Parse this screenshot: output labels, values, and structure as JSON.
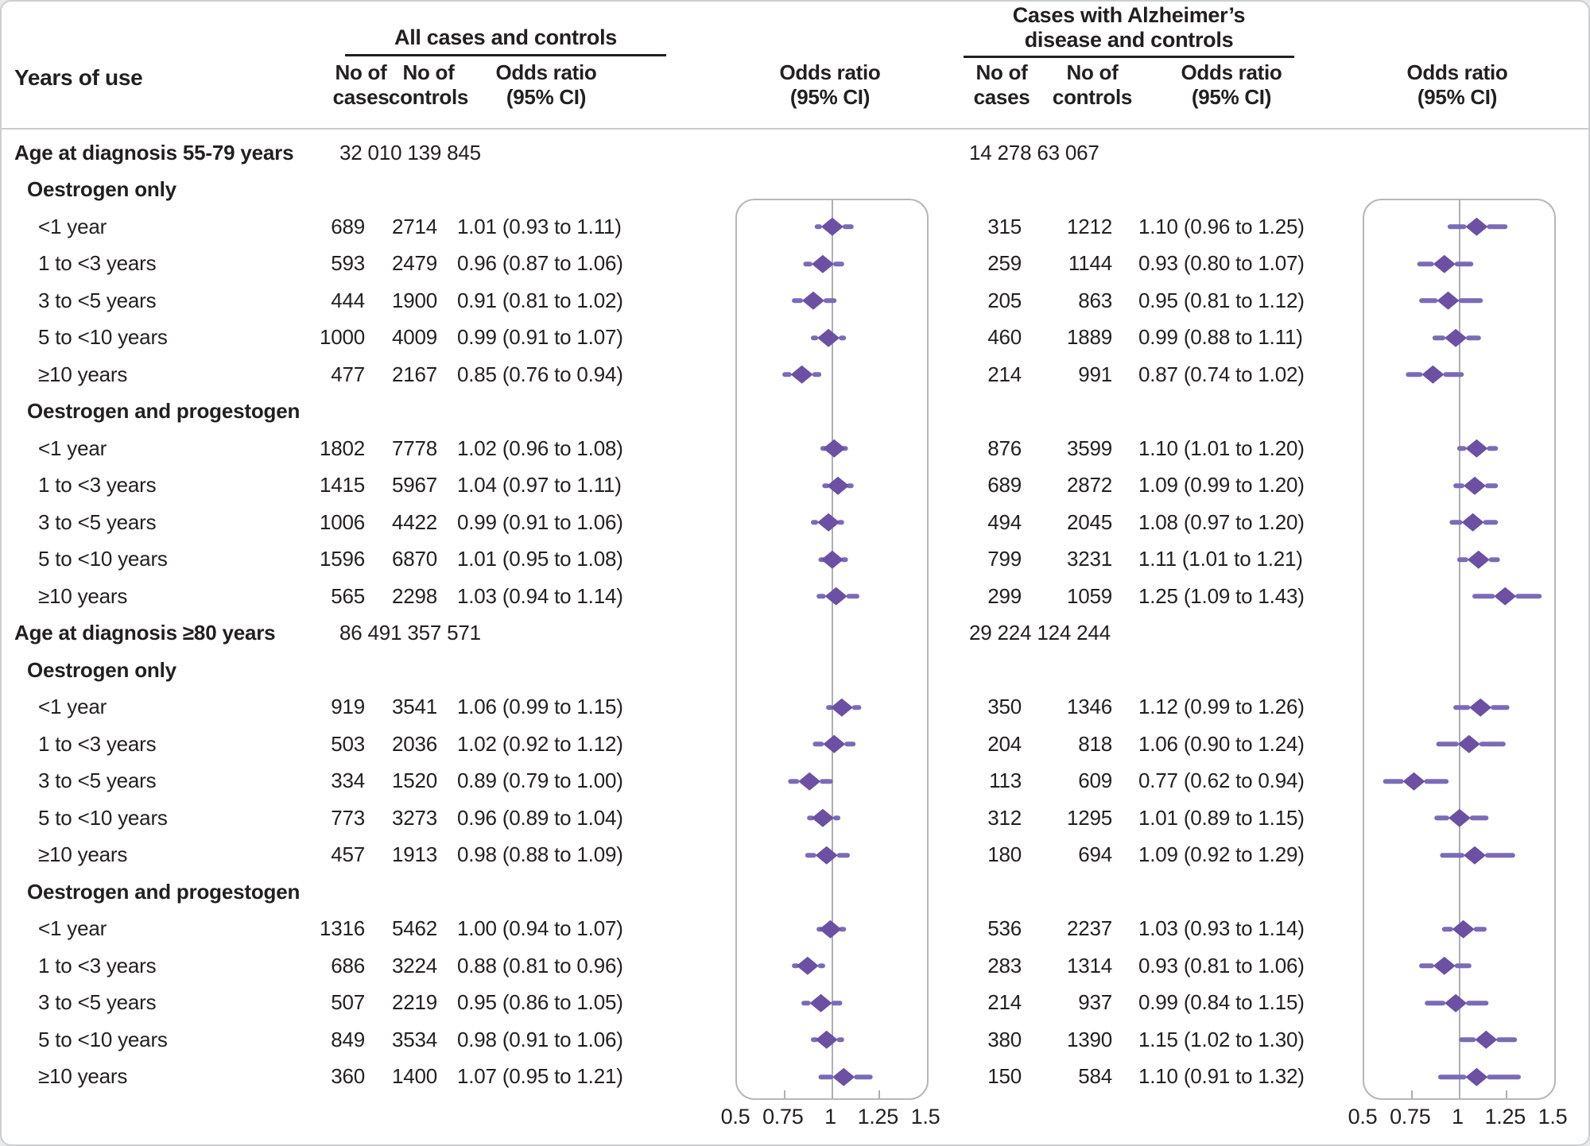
{
  "header": {
    "years_of_use": "Years of use",
    "group1_title": "All cases and controls",
    "group2_title_line1": "Cases with Alzheimer’s",
    "group2_title_line2": "disease and controls",
    "no_of": "No of",
    "cases": "cases",
    "controls": "controls",
    "odds_ratio_l1": "Odds ratio",
    "odds_ratio_l2": "(95% CI)"
  },
  "colors": {
    "diamond": "#6b50a3",
    "ci_line": "#7b6bb7",
    "ref_line": "#adafb2",
    "panel_border": "#b5b7ba",
    "rule": "#c9cbce",
    "text": "#231f20"
  },
  "chart_data": {
    "type": "forest",
    "or_axis": {
      "min": 0.5,
      "max": 1.5,
      "reference": 1,
      "tick_values": [
        0.5,
        0.75,
        1,
        1.25,
        1.5
      ],
      "tick_labels": [
        "0.5",
        "0.75",
        "1",
        "1.25",
        "1.5"
      ],
      "minor_tick_values": [
        0.75,
        1.25
      ]
    },
    "rows": [
      {
        "kind": "section",
        "label": "Age at diagnosis 55-79 years",
        "left_counts": "32 010 139 845",
        "right_counts": "14 278  63 067"
      },
      {
        "kind": "subgroup",
        "label": "Oestrogen only"
      },
      {
        "kind": "item",
        "label": "<1 year",
        "left": {
          "cases": "689",
          "controls": "2714",
          "or_text": "1.01 (0.93 to 1.11)",
          "or": 1.01,
          "lo": 0.93,
          "hi": 1.11
        },
        "right": {
          "cases": "315",
          "controls": "1212",
          "or_text": "1.10 (0.96 to 1.25)",
          "or": 1.1,
          "lo": 0.96,
          "hi": 1.25
        }
      },
      {
        "kind": "item",
        "label": "1 to <3 years",
        "left": {
          "cases": "593",
          "controls": "2479",
          "or_text": "0.96 (0.87 to 1.06)",
          "or": 0.96,
          "lo": 0.87,
          "hi": 1.06
        },
        "right": {
          "cases": "259",
          "controls": "1144",
          "or_text": "0.93 (0.80 to 1.07)",
          "or": 0.93,
          "lo": 0.8,
          "hi": 1.07
        }
      },
      {
        "kind": "item",
        "label": "3 to <5 years",
        "left": {
          "cases": "444",
          "controls": "1900",
          "or_text": "0.91 (0.81 to 1.02)",
          "or": 0.91,
          "lo": 0.81,
          "hi": 1.02
        },
        "right": {
          "cases": "205",
          "controls": "863",
          "or_text": "0.95 (0.81 to 1.12)",
          "or": 0.95,
          "lo": 0.81,
          "hi": 1.12
        }
      },
      {
        "kind": "item",
        "label": "5 to <10 years",
        "left": {
          "cases": "1000",
          "controls": "4009",
          "or_text": "0.99 (0.91 to 1.07)",
          "or": 0.99,
          "lo": 0.91,
          "hi": 1.07
        },
        "right": {
          "cases": "460",
          "controls": "1889",
          "or_text": "0.99 (0.88 to 1.11)",
          "or": 0.99,
          "lo": 0.88,
          "hi": 1.11
        }
      },
      {
        "kind": "item",
        "label": "≥10 years",
        "left": {
          "cases": "477",
          "controls": "2167",
          "or_text": "0.85 (0.76 to 0.94)",
          "or": 0.85,
          "lo": 0.76,
          "hi": 0.94
        },
        "right": {
          "cases": "214",
          "controls": "991",
          "or_text": "0.87 (0.74 to 1.02)",
          "or": 0.87,
          "lo": 0.74,
          "hi": 1.02
        }
      },
      {
        "kind": "subgroup",
        "label": "Oestrogen and progestogen"
      },
      {
        "kind": "item",
        "label": "<1 year",
        "left": {
          "cases": "1802",
          "controls": "7778",
          "or_text": "1.02 (0.96 to 1.08)",
          "or": 1.02,
          "lo": 0.96,
          "hi": 1.08
        },
        "right": {
          "cases": "876",
          "controls": "3599",
          "or_text": "1.10 (1.01 to 1.20)",
          "or": 1.1,
          "lo": 1.01,
          "hi": 1.2
        }
      },
      {
        "kind": "item",
        "label": "1 to <3 years",
        "left": {
          "cases": "1415",
          "controls": "5967",
          "or_text": "1.04 (0.97 to 1.11)",
          "or": 1.04,
          "lo": 0.97,
          "hi": 1.11
        },
        "right": {
          "cases": "689",
          "controls": "2872",
          "or_text": "1.09 (0.99 to 1.20)",
          "or": 1.09,
          "lo": 0.99,
          "hi": 1.2
        }
      },
      {
        "kind": "item",
        "label": "3 to <5 years",
        "left": {
          "cases": "1006",
          "controls": "4422",
          "or_text": "0.99 (0.91 to 1.06)",
          "or": 0.99,
          "lo": 0.91,
          "hi": 1.06
        },
        "right": {
          "cases": "494",
          "controls": "2045",
          "or_text": "1.08 (0.97 to 1.20)",
          "or": 1.08,
          "lo": 0.97,
          "hi": 1.2
        }
      },
      {
        "kind": "item",
        "label": "5 to <10 years",
        "left": {
          "cases": "1596",
          "controls": "6870",
          "or_text": "1.01 (0.95 to 1.08)",
          "or": 1.01,
          "lo": 0.95,
          "hi": 1.08
        },
        "right": {
          "cases": "799",
          "controls": "3231",
          "or_text": "1.11 (1.01 to 1.21)",
          "or": 1.11,
          "lo": 1.01,
          "hi": 1.21
        }
      },
      {
        "kind": "item",
        "label": "≥10 years",
        "left": {
          "cases": "565",
          "controls": "2298",
          "or_text": "1.03 (0.94 to 1.14)",
          "or": 1.03,
          "lo": 0.94,
          "hi": 1.14
        },
        "right": {
          "cases": "299",
          "controls": "1059",
          "or_text": "1.25 (1.09 to 1.43)",
          "or": 1.25,
          "lo": 1.09,
          "hi": 1.43
        }
      },
      {
        "kind": "section",
        "label": "Age at diagnosis ≥80 years",
        "left_counts": "86 491 357 571",
        "right_counts": "29 224 124 244"
      },
      {
        "kind": "subgroup",
        "label": "Oestrogen only"
      },
      {
        "kind": "item",
        "label": "<1 year",
        "left": {
          "cases": "919",
          "controls": "3541",
          "or_text": "1.06 (0.99 to 1.15)",
          "or": 1.06,
          "lo": 0.99,
          "hi": 1.15
        },
        "right": {
          "cases": "350",
          "controls": "1346",
          "or_text": "1.12 (0.99 to 1.26)",
          "or": 1.12,
          "lo": 0.99,
          "hi": 1.26
        }
      },
      {
        "kind": "item",
        "label": "1 to <3 years",
        "left": {
          "cases": "503",
          "controls": "2036",
          "or_text": "1.02 (0.92 to 1.12)",
          "or": 1.02,
          "lo": 0.92,
          "hi": 1.12
        },
        "right": {
          "cases": "204",
          "controls": "818",
          "or_text": "1.06 (0.90 to 1.24)",
          "or": 1.06,
          "lo": 0.9,
          "hi": 1.24
        }
      },
      {
        "kind": "item",
        "label": "3 to <5 years",
        "left": {
          "cases": "334",
          "controls": "1520",
          "or_text": "0.89 (0.79 to 1.00)",
          "or": 0.89,
          "lo": 0.79,
          "hi": 1.0
        },
        "right": {
          "cases": "113",
          "controls": "609",
          "or_text": "0.77 (0.62 to 0.94)",
          "or": 0.77,
          "lo": 0.62,
          "hi": 0.94
        }
      },
      {
        "kind": "item",
        "label": "5 to <10 years",
        "left": {
          "cases": "773",
          "controls": "3273",
          "or_text": "0.96 (0.89 to 1.04)",
          "or": 0.96,
          "lo": 0.89,
          "hi": 1.04
        },
        "right": {
          "cases": "312",
          "controls": "1295",
          "or_text": "1.01 (0.89 to 1.15)",
          "or": 1.01,
          "lo": 0.89,
          "hi": 1.15
        }
      },
      {
        "kind": "item",
        "label": "≥10 years",
        "left": {
          "cases": "457",
          "controls": "1913",
          "or_text": "0.98 (0.88 to 1.09)",
          "or": 0.98,
          "lo": 0.88,
          "hi": 1.09
        },
        "right": {
          "cases": "180",
          "controls": "694",
          "or_text": "1.09 (0.92 to 1.29)",
          "or": 1.09,
          "lo": 0.92,
          "hi": 1.29
        }
      },
      {
        "kind": "subgroup",
        "label": "Oestrogen and progestogen"
      },
      {
        "kind": "item",
        "label": "<1 year",
        "left": {
          "cases": "1316",
          "controls": "5462",
          "or_text": "1.00 (0.94 to 1.07)",
          "or": 1.0,
          "lo": 0.94,
          "hi": 1.07
        },
        "right": {
          "cases": "536",
          "controls": "2237",
          "or_text": "1.03 (0.93 to 1.14)",
          "or": 1.03,
          "lo": 0.93,
          "hi": 1.14
        }
      },
      {
        "kind": "item",
        "label": "1 to <3 years",
        "left": {
          "cases": "686",
          "controls": "3224",
          "or_text": "0.88 (0.81 to 0.96)",
          "or": 0.88,
          "lo": 0.81,
          "hi": 0.96
        },
        "right": {
          "cases": "283",
          "controls": "1314",
          "or_text": "0.93 (0.81 to 1.06)",
          "or": 0.93,
          "lo": 0.81,
          "hi": 1.06
        }
      },
      {
        "kind": "item",
        "label": "3 to <5 years",
        "left": {
          "cases": "507",
          "controls": "2219",
          "or_text": "0.95 (0.86 to 1.05)",
          "or": 0.95,
          "lo": 0.86,
          "hi": 1.05
        },
        "right": {
          "cases": "214",
          "controls": "937",
          "or_text": "0.99 (0.84 to 1.15)",
          "or": 0.99,
          "lo": 0.84,
          "hi": 1.15
        }
      },
      {
        "kind": "item",
        "label": "5 to <10 years",
        "left": {
          "cases": "849",
          "controls": "3534",
          "or_text": "0.98 (0.91 to 1.06)",
          "or": 0.98,
          "lo": 0.91,
          "hi": 1.06
        },
        "right": {
          "cases": "380",
          "controls": "1390",
          "or_text": "1.15 (1.02 to 1.30)",
          "or": 1.15,
          "lo": 1.02,
          "hi": 1.3
        }
      },
      {
        "kind": "item",
        "label": "≥10 years",
        "left": {
          "cases": "360",
          "controls": "1400",
          "or_text": "1.07 (0.95 to 1.21)",
          "or": 1.07,
          "lo": 0.95,
          "hi": 1.21
        },
        "right": {
          "cases": "150",
          "controls": "584",
          "or_text": "1.10 (0.91 to 1.32)",
          "or": 1.1,
          "lo": 0.91,
          "hi": 1.32
        }
      }
    ]
  }
}
